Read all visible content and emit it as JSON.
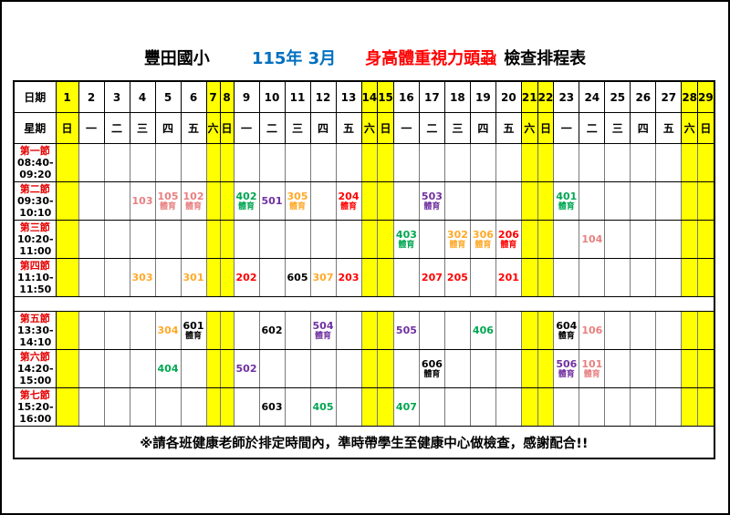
{
  "title": {
    "school": "豐田國小",
    "date": "115年 3月",
    "subject": "身高體重視力頭蝨",
    "suffix": "檢查排程表"
  },
  "colors": {
    "date_blue": "#0070C0",
    "subject_red": "#FF0000",
    "period_red": "#E60000",
    "weekend_bg": "#FFFF00",
    "grade1": "#E88080",
    "grade2": "#FF0000",
    "grade3": "#FFA929",
    "grade4": "#00A651",
    "grade5": "#7030A0",
    "grade6": "#000000"
  },
  "header": {
    "date_label": "日期",
    "weekday_label": "星期",
    "days": [
      1,
      2,
      3,
      4,
      5,
      6,
      7,
      8,
      9,
      10,
      11,
      12,
      13,
      14,
      15,
      16,
      17,
      18,
      19,
      20,
      21,
      22,
      23,
      24,
      25,
      26,
      27,
      28,
      29
    ],
    "weekdays": [
      "日",
      "一",
      "二",
      "三",
      "四",
      "五",
      "六",
      "日",
      "一",
      "二",
      "三",
      "四",
      "五",
      "六",
      "日",
      "一",
      "二",
      "三",
      "四",
      "五",
      "六",
      "日",
      "一",
      "二",
      "三",
      "四",
      "五",
      "六",
      "日"
    ],
    "weekend_days": [
      1,
      7,
      8,
      14,
      15,
      21,
      22,
      28,
      29
    ]
  },
  "pe_label": "體育",
  "periods": [
    {
      "name": "第一節",
      "time1": "08:40-",
      "time2": "09:20",
      "entries": []
    },
    {
      "name": "第二節",
      "time1": "09:30-",
      "time2": "10:10",
      "entries": [
        {
          "day": 4,
          "class": "103",
          "grade": "1",
          "pe": false
        },
        {
          "day": 5,
          "class": "105",
          "grade": "1",
          "pe": true
        },
        {
          "day": 6,
          "class": "102",
          "grade": "1",
          "pe": true
        },
        {
          "day": 9,
          "class": "402",
          "grade": "4",
          "pe": true
        },
        {
          "day": 10,
          "class": "501",
          "grade": "5",
          "pe": false
        },
        {
          "day": 11,
          "class": "305",
          "grade": "3",
          "pe": true
        },
        {
          "day": 13,
          "class": "204",
          "grade": "2",
          "pe": true
        },
        {
          "day": 17,
          "class": "503",
          "grade": "5",
          "pe": true
        },
        {
          "day": 23,
          "class": "401",
          "grade": "4",
          "pe": true
        }
      ]
    },
    {
      "name": "第三節",
      "time1": "10:20-",
      "time2": "11:00",
      "entries": [
        {
          "day": 16,
          "class": "403",
          "grade": "4",
          "pe": true
        },
        {
          "day": 18,
          "class": "302",
          "grade": "3",
          "pe": true
        },
        {
          "day": 19,
          "class": "306",
          "grade": "3",
          "pe": true
        },
        {
          "day": 20,
          "class": "206",
          "grade": "2",
          "pe": true
        },
        {
          "day": 24,
          "class": "104",
          "grade": "1",
          "pe": false
        }
      ]
    },
    {
      "name": "第四節",
      "time1": "11:10-",
      "time2": "11:50",
      "entries": [
        {
          "day": 4,
          "class": "303",
          "grade": "3",
          "pe": false
        },
        {
          "day": 6,
          "class": "301",
          "grade": "3",
          "pe": false
        },
        {
          "day": 9,
          "class": "202",
          "grade": "2",
          "pe": false
        },
        {
          "day": 11,
          "class": "605",
          "grade": "6",
          "pe": false
        },
        {
          "day": 12,
          "class": "307",
          "grade": "3",
          "pe": false
        },
        {
          "day": 13,
          "class": "203",
          "grade": "2",
          "pe": false
        },
        {
          "day": 17,
          "class": "207",
          "grade": "2",
          "pe": false
        },
        {
          "day": 18,
          "class": "205",
          "grade": "2",
          "pe": false
        },
        {
          "day": 20,
          "class": "201",
          "grade": "2",
          "pe": false
        }
      ]
    },
    {
      "name": "第五節",
      "time1": "13:30-",
      "time2": "14:10",
      "entries": [
        {
          "day": 5,
          "class": "304",
          "grade": "3",
          "pe": false
        },
        {
          "day": 6,
          "class": "601",
          "grade": "6",
          "pe": true
        },
        {
          "day": 10,
          "class": "602",
          "grade": "6",
          "pe": false
        },
        {
          "day": 12,
          "class": "504",
          "grade": "5",
          "pe": true
        },
        {
          "day": 16,
          "class": "505",
          "grade": "5",
          "pe": false
        },
        {
          "day": 19,
          "class": "406",
          "grade": "4",
          "pe": false
        },
        {
          "day": 23,
          "class": "604",
          "grade": "6",
          "pe": true
        },
        {
          "day": 24,
          "class": "106",
          "grade": "1",
          "pe": false
        }
      ]
    },
    {
      "name": "第六節",
      "time1": "14:20-",
      "time2": "15:00",
      "entries": [
        {
          "day": 5,
          "class": "404",
          "grade": "4",
          "pe": false
        },
        {
          "day": 9,
          "class": "502",
          "grade": "5",
          "pe": false
        },
        {
          "day": 17,
          "class": "606",
          "grade": "6",
          "pe": true
        },
        {
          "day": 23,
          "class": "506",
          "grade": "5",
          "pe": true
        },
        {
          "day": 24,
          "class": "101",
          "grade": "1",
          "pe": true
        }
      ]
    },
    {
      "name": "第七節",
      "time1": "15:20-",
      "time2": "16:00",
      "entries": [
        {
          "day": 10,
          "class": "603",
          "grade": "6",
          "pe": false
        },
        {
          "day": 12,
          "class": "405",
          "grade": "4",
          "pe": false
        },
        {
          "day": 16,
          "class": "407",
          "grade": "4",
          "pe": false
        }
      ]
    }
  ],
  "separator_after_period_index": 3,
  "footer_note": "※請各班健康老師於排定時間內，準時帶學生至健康中心做檢查，感謝配合!!"
}
